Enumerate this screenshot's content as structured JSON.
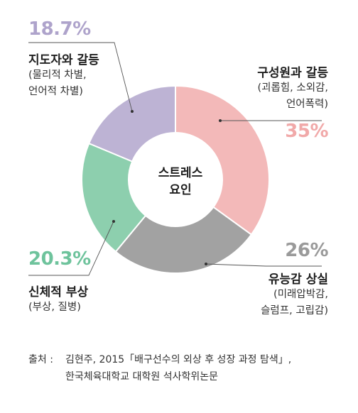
{
  "chart_data": {
    "type": "pie",
    "center_label": [
      "스트레스",
      "요인"
    ],
    "slices": [
      {
        "percent_label": "35%",
        "value": 35,
        "title": "구성원과 갈등",
        "detail": [
          "(괴롭힘, 소외감,",
          "언어폭력)"
        ],
        "color": "#f3b9b9",
        "pct_color": "#f1a9a9"
      },
      {
        "percent_label": "26%",
        "value": 26,
        "title": "유능감 상실",
        "detail": [
          "(미래압박감,",
          "슬럼프, 고립감)"
        ],
        "color": "#a2a2a2",
        "pct_color": "#9a9a9a"
      },
      {
        "percent_label": "20.3%",
        "value": 20.3,
        "title": "신체적 부상",
        "detail": [
          "(부상, 질병)"
        ],
        "color": "#8dcfae",
        "pct_color": "#6ec39c"
      },
      {
        "percent_label": "18.7%",
        "value": 18.7,
        "title": "지도자와 갈등",
        "detail": [
          "(물리적 차별,",
          "언어적 차별)"
        ],
        "color": "#bdb3d4",
        "pct_color": "#aea3cb"
      }
    ]
  },
  "source": {
    "label": "출처 :",
    "line1": "김현주, 2015「배구선수의 외상 후 성장 과정 탐색」,",
    "line2": "한국체육대학교 대학원 석사학위논문"
  }
}
